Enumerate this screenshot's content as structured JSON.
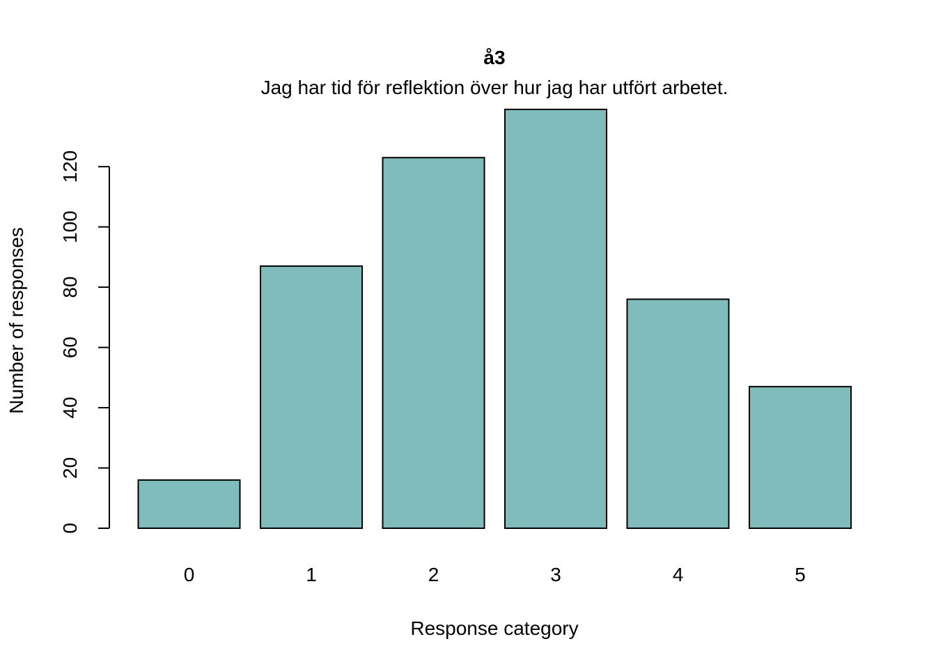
{
  "chart_data": {
    "type": "bar",
    "title": "å3",
    "subtitle": "Jag har tid för reflektion över hur jag har utfört arbetet.",
    "xlabel": "Response category",
    "ylabel": "Number of responses",
    "categories": [
      "0",
      "1",
      "2",
      "3",
      "4",
      "5"
    ],
    "values": [
      16,
      87,
      123,
      139,
      76,
      47
    ],
    "yticks": [
      0,
      20,
      40,
      60,
      80,
      100,
      120
    ],
    "ylim": [
      0,
      139
    ],
    "bar_color": "#80BCBB",
    "bar_border_color": "#000000",
    "grid": false,
    "legend": "none"
  }
}
